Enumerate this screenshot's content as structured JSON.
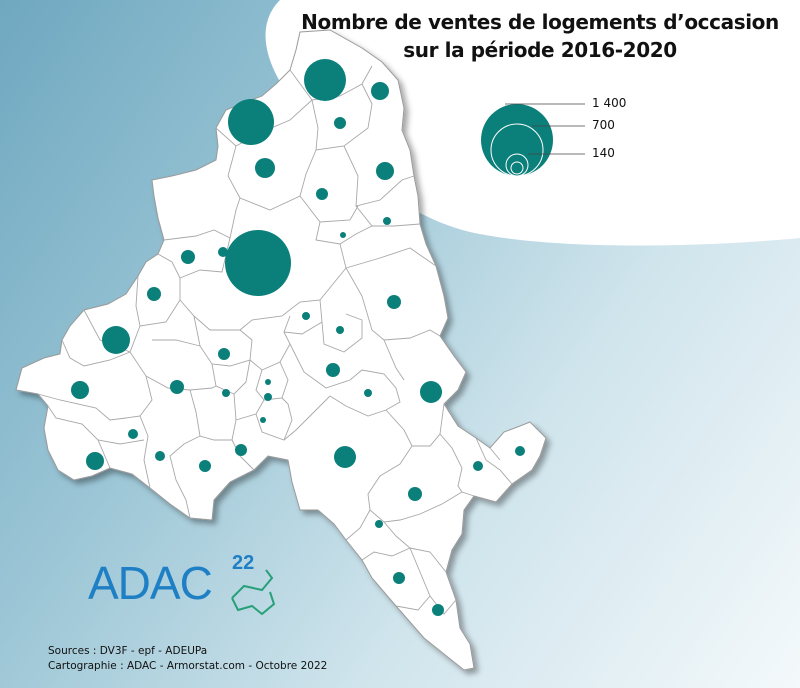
{
  "title": {
    "line1": "Nombre de ventes de logements d’occasion",
    "line2": "sur la période 2016-2020"
  },
  "legend": {
    "values": [
      1400,
      700,
      140
    ],
    "labels": [
      "1 400",
      "700",
      "140"
    ]
  },
  "logo": {
    "name": "ADAC",
    "sup": "22"
  },
  "sources": {
    "line1": "Sources : DV3F - epf - ADEUPa",
    "line2": "Cartographie : ADAC - Armorstat.com - Octobre 2022"
  },
  "colors": {
    "bubble": "#0b7f7a",
    "territory_fill": "#ffffff",
    "territory_border": "#9a9a9a"
  },
  "icons": [
    "adac-logo-icon",
    "legend-circles-icon"
  ]
}
